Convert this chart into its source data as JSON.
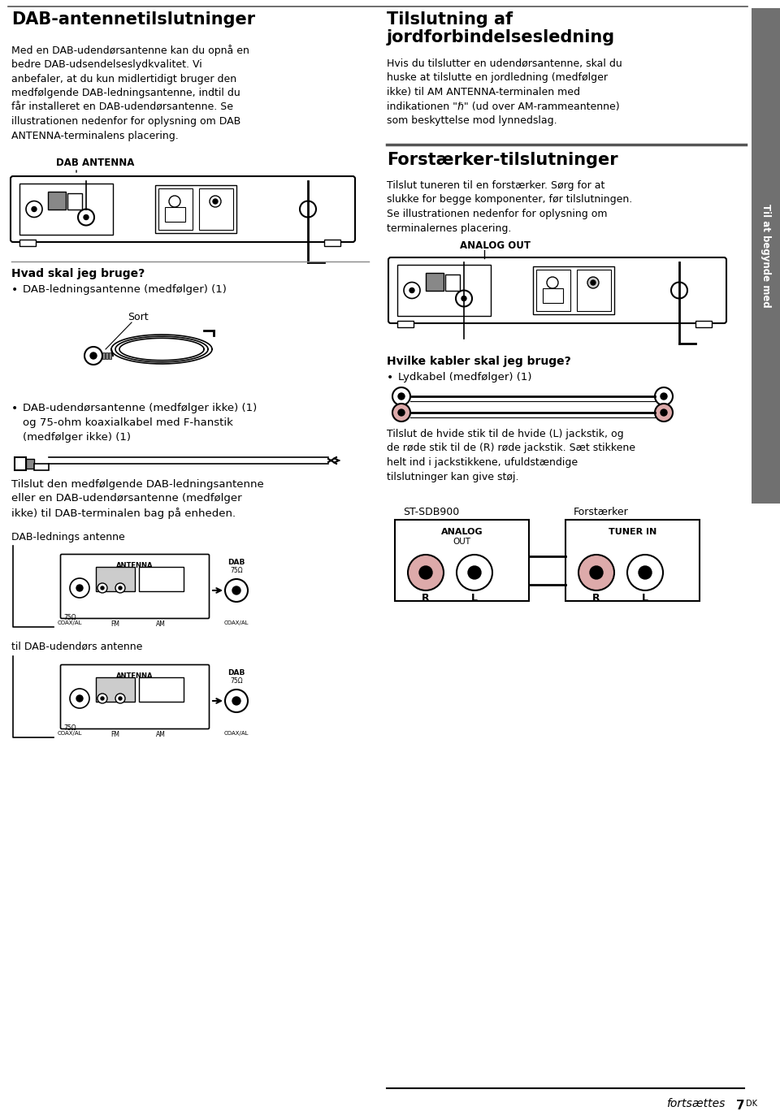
{
  "bg_color": "#ffffff",
  "page_width": 9.6,
  "page_height": 13.68,
  "sidebar_color": "#707070",
  "sidebar_text": "Til at begynde med",
  "title1": "DAB-antennetilslutninger",
  "body1": "Med en DAB-udendørsantenne kan du opnå en\nbedre DAB-udsendelseslydkvalitet. Vi\nanbefaler, at du kun midlertidigt bruger den\nmedfølgende DAB-ledningsantenne, indtil du\nfår installeret en DAB-udendørsantenne. Se\nillustrationen nedenfor for oplysning om DAB\nANTENNA-terminalens placering.",
  "label_dab_antenna": "DAB ANTENNA",
  "hvad_title": "Hvad skal jeg bruge?",
  "bullet1": "DAB-ledningsantenne (medfølger) (1)",
  "sort_label": "Sort",
  "bullet2a": "DAB-udendørsantenne (medfølger ikke) (1)",
  "bullet2b": "og 75-ohm koaxialkabel med F-hanstik",
  "bullet2c": "(medfølger ikke) (1)",
  "connect_text": "Tilslut den medfølgende DAB-ledningsantenne\neller en DAB-udendørsantenne (medfølger\nikke) til DAB-terminalen bag på enheden.",
  "dab_lednings_label": "DAB-lednings antenne",
  "til_dab_label": "til DAB-udendørs antenne",
  "title2a": "Tilslutning af",
  "title2b": "jordforbindelsesledning",
  "body2": "Hvis du tilslutter en udendørsantenne, skal du\nhuske at tilslutte en jordledning (medfølger\nikke) til AM ANTENNA-terminalen med\nindikationen \"ℏ\" (ud over AM-rammeantenne)\nsom beskyttelse mod lynnedslag.",
  "title3": "Forstærker-tilslutninger",
  "body3": "Tilslut tuneren til en forstærker. Sørg for at\nslukke for begge komponenter, før tilslutningen.\nSe illustrationen nedenfor for oplysning om\nterminalernes placering.",
  "analog_out_label": "ANALOG OUT",
  "hvilke_title": "Hvilke kabler skal jeg bruge?",
  "bullet3": "Lydkabel (medfølger) (1)",
  "rca_text": "Tilslut de hvide stik til de hvide (L) jackstik, og\nde røde stik til de (R) røde jackstik. Sæt stikkene\nhelt ind i jackstikkene, ufuldstændige\ntilslutninger kan give støj.",
  "st_sdb900": "ST-SDB900",
  "forstaerker": "Forstærker",
  "analog_label": "ANALOG",
  "out_label": "OUT",
  "r_label1": "R",
  "l_label1": "L",
  "tuner_in_label": "TUNER IN",
  "r_label2": "R",
  "l_label2": "L",
  "fortsaettes": "fortsættes",
  "page_num": "7",
  "page_num2": "DK"
}
